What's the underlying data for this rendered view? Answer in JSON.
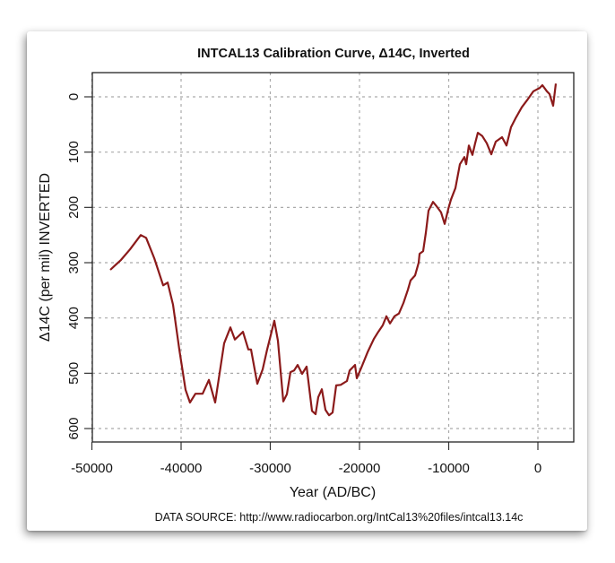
{
  "chart_data": {
    "type": "line",
    "title": "INTCAL13 Calibration Curve, Δ14C, Inverted",
    "xlabel": "Year (AD/BC)",
    "ylabel": "Δ14C (per mil) INVERTED",
    "source_note": "DATA SOURCE: http://www.radiocarbon.org/IntCal13%20files/intcal13.14c",
    "xlim": [
      -50000,
      4000
    ],
    "ylim": [
      620,
      -40
    ],
    "y_inverted": true,
    "grid": true,
    "x_ticks": [
      -50000,
      -40000,
      -30000,
      -20000,
      -10000,
      0
    ],
    "x_tick_labels": [
      "-50000",
      "-40000",
      "-30000",
      "-20000",
      "-10000",
      "0"
    ],
    "y_ticks": [
      0,
      100,
      200,
      300,
      400,
      500,
      600
    ],
    "y_tick_labels": [
      "0",
      "100",
      "200",
      "300",
      "400",
      "500",
      "600"
    ],
    "line_color": "#8b1a1a",
    "series": [
      {
        "name": "Δ14C",
        "x": [
          -47940,
          -46730,
          -45730,
          -44520,
          -43920,
          -43010,
          -42010,
          -41510,
          -40900,
          -40200,
          -39500,
          -39000,
          -38390,
          -37590,
          -36880,
          -36180,
          -35180,
          -34470,
          -33970,
          -33570,
          -33070,
          -32460,
          -32160,
          -31460,
          -30850,
          -30350,
          -29550,
          -29150,
          -28540,
          -28140,
          -27740,
          -27340,
          -26930,
          -26430,
          -25930,
          -25330,
          -24920,
          -24620,
          -24220,
          -23820,
          -23420,
          -23020,
          -22610,
          -22110,
          -21410,
          -21110,
          -20500,
          -20300,
          -19800,
          -19100,
          -18390,
          -17890,
          -17390,
          -16980,
          -16580,
          -16080,
          -15580,
          -15080,
          -14570,
          -14270,
          -13770,
          -13370,
          -13270,
          -12860,
          -12560,
          -12260,
          -11760,
          -11360,
          -10850,
          -10450,
          -10050,
          -9750,
          -9250,
          -8740,
          -8240,
          -8040,
          -7740,
          -7340,
          -7040,
          -6730,
          -6230,
          -5730,
          -5230,
          -4720,
          -4020,
          -3520,
          -3020,
          -2510,
          -1810,
          -1210,
          -500,
          200,
          500,
          1000,
          1310,
          1710,
          2010
        ],
        "y": [
          313,
          295,
          276,
          250,
          255,
          292,
          341,
          336,
          376,
          457,
          530,
          553,
          537,
          537,
          512,
          553,
          446,
          417,
          439,
          433,
          425,
          457,
          457,
          519,
          493,
          457,
          405,
          441,
          551,
          538,
          498,
          495,
          485,
          501,
          488,
          568,
          574,
          543,
          529,
          566,
          576,
          571,
          522,
          521,
          514,
          495,
          485,
          509,
          490,
          462,
          438,
          425,
          413,
          397,
          410,
          397,
          392,
          373,
          349,
          332,
          323,
          300,
          284,
          279,
          246,
          206,
          190,
          198,
          209,
          230,
          203,
          186,
          165,
          122,
          109,
          122,
          88,
          105,
          84,
          65,
          71,
          84,
          104,
          81,
          73,
          88,
          55,
          39,
          19,
          6,
          -10,
          -16,
          -21,
          -10,
          -5,
          16,
          -24
        ]
      }
    ]
  }
}
